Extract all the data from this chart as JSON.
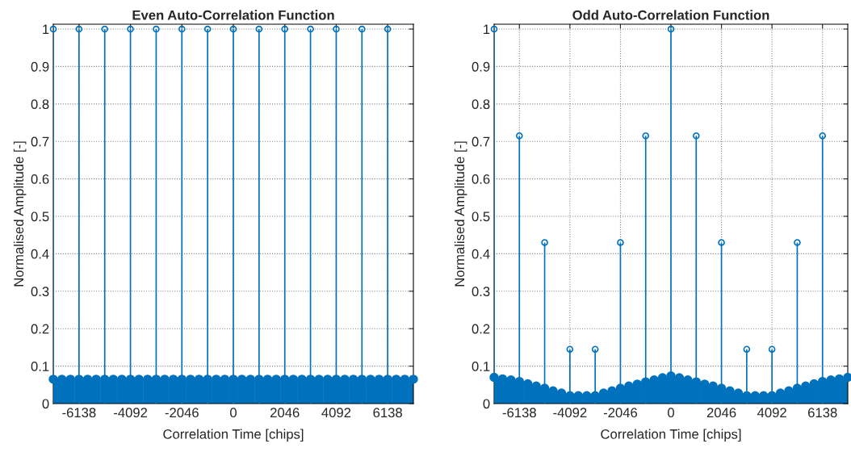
{
  "chart_data": [
    {
      "type": "lollipop",
      "title": "Even Auto-Correlation Function",
      "xlabel": "Correlation Time [chips]",
      "ylabel": "Normalised Amplitude [-]",
      "xlim": [
        -7161,
        7161
      ],
      "xticks": [
        -6138,
        -4092,
        -2046,
        0,
        2046,
        4092,
        6138
      ],
      "ylim": [
        0,
        1.013
      ],
      "yticks": [
        0,
        0.1,
        0.2,
        0.3,
        0.4,
        0.5,
        0.6,
        0.7,
        0.8,
        0.9,
        1
      ],
      "grid": true,
      "marker": "circle",
      "series": [
        {
          "color": "#0072bd",
          "x": [
            -7161,
            -6820,
            -6479,
            -6138,
            -5797,
            -5456,
            -5115,
            -4774,
            -4433,
            -4092,
            -3751,
            -3410,
            -3069,
            -2728,
            -2387,
            -2046,
            -1705,
            -1364,
            -1023,
            -682,
            -341,
            0,
            341,
            682,
            1023,
            1364,
            1705,
            2046,
            2387,
            2728,
            3069,
            3410,
            3751,
            4092,
            4433,
            4774,
            5115,
            5456,
            5797,
            6138,
            6479,
            6820,
            7161
          ],
          "values": [
            0.065,
            0.065,
            0.065,
            0.065,
            0.065,
            0.065,
            0.065,
            0.065,
            0.065,
            0.065,
            0.065,
            0.065,
            0.065,
            0.065,
            0.065,
            0.065,
            0.065,
            0.065,
            0.065,
            0.065,
            0.065,
            0.065,
            0.065,
            0.065,
            0.065,
            0.065,
            0.065,
            0.065,
            0.065,
            0.065,
            0.065,
            0.065,
            0.065,
            0.065,
            0.065,
            0.065,
            0.065,
            0.065,
            0.065,
            0.065,
            0.065,
            0.065,
            0.065
          ]
        },
        {
          "color": "#0072bd",
          "x": [
            -7161,
            -6138,
            -5115,
            -4092,
            -3069,
            -2046,
            -1023,
            0,
            1023,
            2046,
            3069,
            4092,
            5115,
            6138
          ],
          "values": [
            1,
            1,
            1,
            1,
            1,
            1,
            1,
            1,
            1,
            1,
            1,
            1,
            1,
            1
          ]
        }
      ]
    },
    {
      "type": "lollipop",
      "title": "Odd Auto-Correlation Function",
      "xlabel": "Correlation Time [chips]",
      "ylabel": "Normalised Amplitude [-]",
      "xlim": [
        -7161,
        7161
      ],
      "xticks": [
        -6138,
        -4092,
        -2046,
        0,
        2046,
        4092,
        6138
      ],
      "ylim": [
        0,
        1.013
      ],
      "yticks": [
        0,
        0.1,
        0.2,
        0.3,
        0.4,
        0.5,
        0.6,
        0.7,
        0.8,
        0.9,
        1
      ],
      "grid": true,
      "marker": "circle",
      "series": [
        {
          "color": "#0072bd",
          "x": [
            -7161,
            -6820,
            -6479,
            -6138,
            -5797,
            -5456,
            -5115,
            -4774,
            -4433,
            -4092,
            -3751,
            -3410,
            -3069,
            -2728,
            -2387,
            -2046,
            -1705,
            -1364,
            -1023,
            -682,
            -341,
            0,
            341,
            682,
            1023,
            1364,
            1705,
            2046,
            2387,
            2728,
            3069,
            3410,
            3751,
            4092,
            4433,
            4774,
            5115,
            5456,
            5797,
            6138,
            6479,
            6820,
            7161
          ],
          "values": [
            0.07,
            0.066,
            0.063,
            0.059,
            0.053,
            0.047,
            0.041,
            0.034,
            0.028,
            0.021,
            0.021,
            0.021,
            0.021,
            0.028,
            0.034,
            0.041,
            0.047,
            0.052,
            0.058,
            0.063,
            0.069,
            0.074,
            0.069,
            0.063,
            0.058,
            0.052,
            0.047,
            0.041,
            0.034,
            0.028,
            0.021,
            0.021,
            0.021,
            0.021,
            0.028,
            0.034,
            0.041,
            0.047,
            0.053,
            0.059,
            0.063,
            0.066,
            0.07
          ]
        },
        {
          "color": "#0072bd",
          "x": [
            -7161,
            -6138,
            -5115,
            -4092,
            -3069,
            -2046,
            -1023,
            0,
            1023,
            2046,
            3069,
            4092,
            5115,
            6138
          ],
          "values": [
            1,
            0.715,
            0.43,
            0.145,
            0.145,
            0.43,
            0.715,
            1,
            0.715,
            0.43,
            0.145,
            0.145,
            0.43,
            0.715
          ]
        }
      ]
    }
  ]
}
